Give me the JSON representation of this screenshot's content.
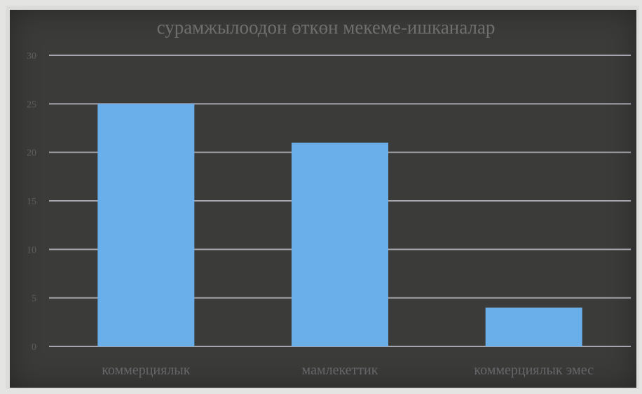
{
  "chart_data": {
    "type": "bar",
    "title": "сурамжылоодон өткөн мекеме-ишканалар",
    "xlabel": "",
    "ylabel": "",
    "categories": [
      "коммерциялык",
      "мамлекеттик",
      "коммерциялык эмес"
    ],
    "values": [
      25,
      21,
      4
    ],
    "ylim": [
      0,
      30
    ],
    "yticks": [
      "0",
      "5",
      "10",
      "15",
      "20",
      "25",
      "30"
    ],
    "grid": true,
    "legend": "none",
    "colors": {
      "bar": "#6aaeea",
      "background": "#3b3b3a",
      "grid": "#a5a5ad"
    }
  }
}
